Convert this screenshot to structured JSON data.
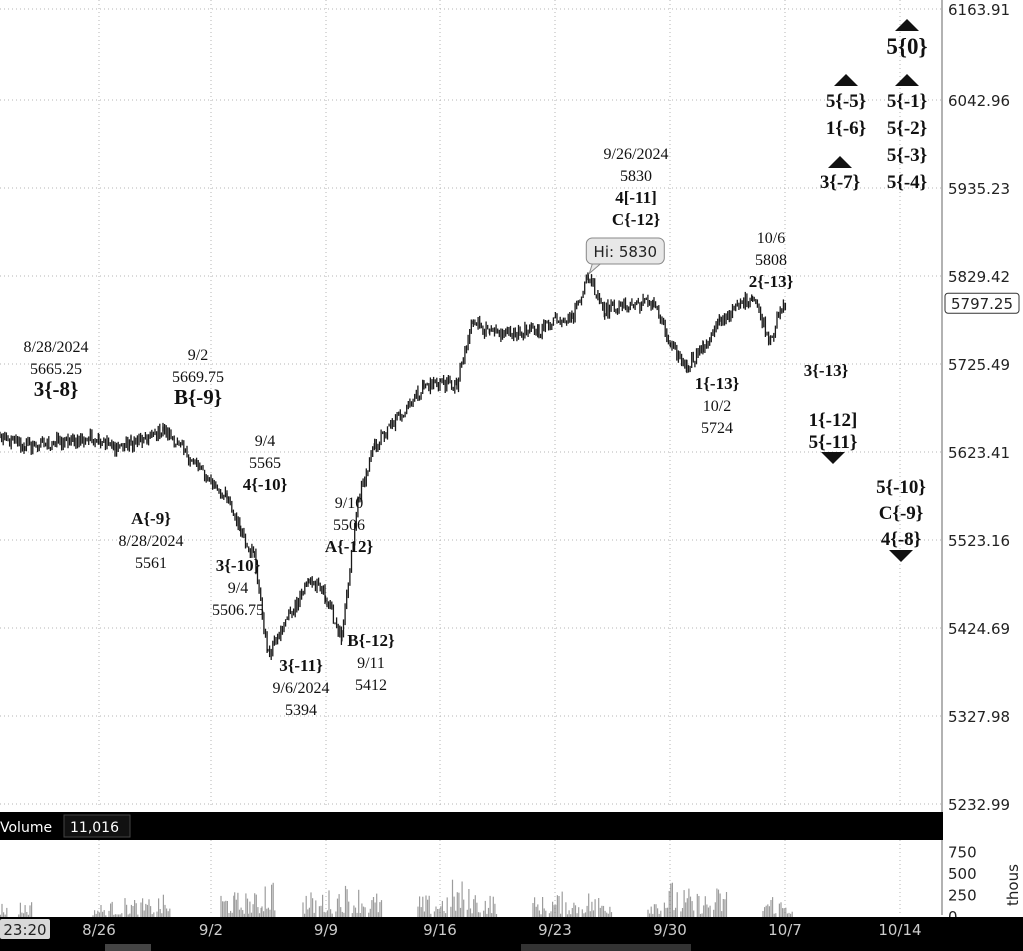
{
  "chart_data": {
    "type": "bar",
    "price_axis": {
      "labels": [
        "6163.91",
        "6042.96",
        "5935.23",
        "5829.42",
        "5725.49",
        "5623.41",
        "5523.16",
        "5424.69",
        "5327.98",
        "5232.99"
      ],
      "ylim": [
        5232.99,
        6163.91
      ],
      "current_price": "5797.25",
      "grid": true
    },
    "x_axis": {
      "labels": [
        "8/26",
        "9/2",
        "9/9",
        "9/16",
        "9/23",
        "9/30",
        "10/7",
        "10/14"
      ],
      "current_time": "23:20"
    },
    "price_path": [
      [
        "8/22",
        5640
      ],
      [
        "8/23",
        5630
      ],
      [
        "8/26",
        5640
      ],
      [
        "8/27",
        5628
      ],
      [
        "8/28",
        5635
      ],
      [
        "8/29",
        5637
      ],
      [
        "8/30",
        5650
      ],
      [
        "9/3",
        5570
      ],
      [
        "9/4",
        5535
      ],
      [
        "9/5",
        5505
      ],
      [
        "9/6",
        5394
      ],
      [
        "9/9",
        5480
      ],
      [
        "9/10",
        5460
      ],
      [
        "9/11",
        5412
      ],
      [
        "9/12",
        5570
      ],
      [
        "9/13",
        5630
      ],
      [
        "9/16",
        5700
      ],
      [
        "9/17",
        5705
      ],
      [
        "9/18",
        5700
      ],
      [
        "9/19",
        5780
      ],
      [
        "9/20",
        5760
      ],
      [
        "9/23",
        5765
      ],
      [
        "9/24",
        5780
      ],
      [
        "9/25",
        5780
      ],
      [
        "9/26",
        5830
      ],
      [
        "9/27",
        5790
      ],
      [
        "9/30",
        5800
      ],
      [
        "10/1",
        5745
      ],
      [
        "10/2",
        5724
      ],
      [
        "10/3",
        5745
      ],
      [
        "10/4",
        5775
      ],
      [
        "10/6",
        5808
      ],
      [
        "10/7",
        5755
      ],
      [
        "10/8",
        5797.25
      ]
    ],
    "price_annotations": [
      {
        "date": "8/28",
        "lines": [
          "8/28/2024",
          "5665.25",
          "3{-8}"
        ]
      },
      {
        "date": "8/28",
        "lines": [
          "A{-9}",
          "8/28/2024",
          "5561"
        ]
      },
      {
        "date": "9/2",
        "lines": [
          "9/2",
          "5669.75",
          "B{-9}"
        ]
      },
      {
        "date": "9/4",
        "lines": [
          "9/4",
          "5565",
          "4{-10}"
        ]
      },
      {
        "date": "9/4",
        "lines": [
          "3{-10}",
          "9/4",
          "5506.75"
        ]
      },
      {
        "date": "9/6",
        "lines": [
          "3{-11}",
          "9/6/2024",
          "5394"
        ]
      },
      {
        "date": "9/10",
        "lines": [
          "9/10",
          "5506",
          "A{-12}"
        ]
      },
      {
        "date": "9/11",
        "lines": [
          "B{-12}",
          "9/11",
          "5412"
        ]
      },
      {
        "date": "9/26",
        "lines": [
          "9/26/2024",
          "5830",
          "4[-11]",
          "C{-12}"
        ]
      },
      {
        "date": "10/2",
        "lines": [
          "1{-13}",
          "10/2",
          "5724"
        ]
      },
      {
        "date": "10/6",
        "lines": [
          "10/6",
          "5808",
          "2{-13}"
        ]
      },
      {
        "date": "10/8",
        "lines": [
          "3{-13}"
        ]
      }
    ],
    "projections": [
      {
        "lines": [
          "5{0}"
        ],
        "arrow": "up"
      },
      {
        "lines": [
          "5{-1}",
          "5{-2}",
          "5{-3}",
          "5{-4}"
        ],
        "arrow": "up"
      },
      {
        "lines": [
          "5{-5}",
          "1{-6}"
        ],
        "arrow": "up"
      },
      {
        "lines": [
          "3{-7}"
        ],
        "arrow": "up"
      },
      {
        "lines": [
          "1{-12]",
          "5{-11}"
        ],
        "arrow": "down"
      },
      {
        "lines": [
          "5{-10}",
          "C{-9}",
          "4{-8}"
        ],
        "arrow": "down"
      }
    ],
    "hi_bubble": "Hi: 5830",
    "volume": {
      "title": "Volume",
      "value": "11,016",
      "axis_labels": [
        "750",
        "500",
        "250",
        "0"
      ],
      "unit": "thous",
      "ylim": [
        0,
        800
      ],
      "daily_peaks": [
        [
          "8/22",
          180
        ],
        [
          "8/23",
          200
        ],
        [
          "8/26",
          160
        ],
        [
          "8/27",
          190
        ],
        [
          "8/28",
          230
        ],
        [
          "8/29",
          220
        ],
        [
          "8/30",
          260
        ],
        [
          "9/3",
          320
        ],
        [
          "9/4",
          300
        ],
        [
          "9/5",
          290
        ],
        [
          "9/6",
          520
        ],
        [
          "9/9",
          300
        ],
        [
          "9/10",
          330
        ],
        [
          "9/11",
          410
        ],
        [
          "9/12",
          380
        ],
        [
          "9/13",
          300
        ],
        [
          "9/16",
          260
        ],
        [
          "9/17",
          300
        ],
        [
          "9/18",
          450
        ],
        [
          "9/19",
          350
        ],
        [
          "9/20",
          290
        ],
        [
          "9/23",
          250
        ],
        [
          "9/24",
          300
        ],
        [
          "9/25",
          260
        ],
        [
          "9/26",
          320
        ],
        [
          "9/27",
          280
        ],
        [
          "9/30",
          300
        ],
        [
          "10/1",
          430
        ],
        [
          "10/2",
          340
        ],
        [
          "10/3",
          300
        ],
        [
          "10/4",
          360
        ],
        [
          "10/7",
          300
        ],
        [
          "10/8",
          230
        ]
      ]
    }
  }
}
